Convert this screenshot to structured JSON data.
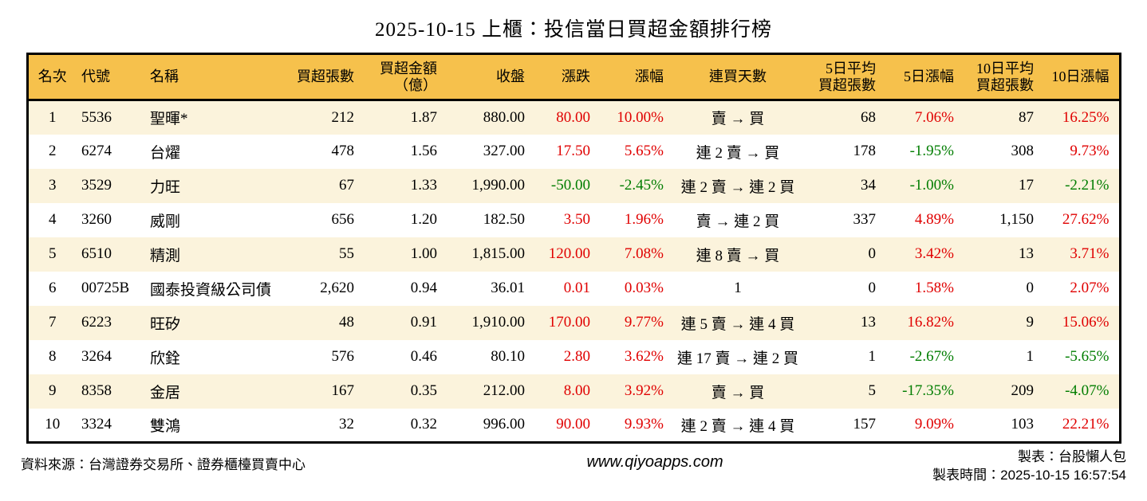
{
  "title": "2025-10-15 上櫃：投信當日買超金額排行榜",
  "colors": {
    "header_bg": "#f6c14c",
    "stripe_bg": "#fbf3dc",
    "positive": "#e00000",
    "negative": "#007d00"
  },
  "table": {
    "header_keys": [
      "rank",
      "code",
      "name",
      "buy-volume",
      "buy-amount",
      "close",
      "change",
      "change-pct",
      "streak",
      "avg5-volume",
      "pct5",
      "avg10-volume",
      "pct10"
    ],
    "headers": [
      "名次",
      "代號",
      "名稱",
      "買超張數",
      "買超金額\n（億）",
      "收盤",
      "漲跌",
      "漲幅",
      "連買天數",
      "5日平均\n買超張數",
      "5日漲幅",
      "10日平均\n買超張數",
      "10日漲幅"
    ],
    "rows": [
      {
        "cells": [
          {
            "t": "1"
          },
          {
            "t": "5536"
          },
          {
            "t": "聖暉*"
          },
          {
            "t": "212"
          },
          {
            "t": "1.87"
          },
          {
            "t": "880.00"
          },
          {
            "t": "80.00",
            "c": "pos"
          },
          {
            "t": "10.00%",
            "c": "pos"
          },
          {
            "t": "賣 → 買"
          },
          {
            "t": "68"
          },
          {
            "t": "7.06%",
            "c": "pos"
          },
          {
            "t": "87"
          },
          {
            "t": "16.25%",
            "c": "pos"
          }
        ]
      },
      {
        "cells": [
          {
            "t": "2"
          },
          {
            "t": "6274"
          },
          {
            "t": "台燿"
          },
          {
            "t": "478"
          },
          {
            "t": "1.56"
          },
          {
            "t": "327.00"
          },
          {
            "t": "17.50",
            "c": "pos"
          },
          {
            "t": "5.65%",
            "c": "pos"
          },
          {
            "t": "連 2 賣 → 買"
          },
          {
            "t": "178"
          },
          {
            "t": "-1.95%",
            "c": "neg"
          },
          {
            "t": "308"
          },
          {
            "t": "9.73%",
            "c": "pos"
          }
        ]
      },
      {
        "cells": [
          {
            "t": "3"
          },
          {
            "t": "3529"
          },
          {
            "t": "力旺"
          },
          {
            "t": "67"
          },
          {
            "t": "1.33"
          },
          {
            "t": "1,990.00"
          },
          {
            "t": "-50.00",
            "c": "neg"
          },
          {
            "t": "-2.45%",
            "c": "neg"
          },
          {
            "t": "連 2 賣 → 連 2 買"
          },
          {
            "t": "34"
          },
          {
            "t": "-1.00%",
            "c": "neg"
          },
          {
            "t": "17"
          },
          {
            "t": "-2.21%",
            "c": "neg"
          }
        ]
      },
      {
        "cells": [
          {
            "t": "4"
          },
          {
            "t": "3260"
          },
          {
            "t": "威剛"
          },
          {
            "t": "656"
          },
          {
            "t": "1.20"
          },
          {
            "t": "182.50"
          },
          {
            "t": "3.50",
            "c": "pos"
          },
          {
            "t": "1.96%",
            "c": "pos"
          },
          {
            "t": "賣 → 連 2 買"
          },
          {
            "t": "337"
          },
          {
            "t": "4.89%",
            "c": "pos"
          },
          {
            "t": "1,150"
          },
          {
            "t": "27.62%",
            "c": "pos"
          }
        ]
      },
      {
        "cells": [
          {
            "t": "5"
          },
          {
            "t": "6510"
          },
          {
            "t": "精測"
          },
          {
            "t": "55"
          },
          {
            "t": "1.00"
          },
          {
            "t": "1,815.00"
          },
          {
            "t": "120.00",
            "c": "pos"
          },
          {
            "t": "7.08%",
            "c": "pos"
          },
          {
            "t": "連 8 賣 → 買"
          },
          {
            "t": "0"
          },
          {
            "t": "3.42%",
            "c": "pos"
          },
          {
            "t": "13"
          },
          {
            "t": "3.71%",
            "c": "pos"
          }
        ]
      },
      {
        "cells": [
          {
            "t": "6"
          },
          {
            "t": "00725B"
          },
          {
            "t": "國泰投資級公司債"
          },
          {
            "t": "2,620"
          },
          {
            "t": "0.94"
          },
          {
            "t": "36.01"
          },
          {
            "t": "0.01",
            "c": "pos"
          },
          {
            "t": "0.03%",
            "c": "pos"
          },
          {
            "t": "1"
          },
          {
            "t": "0"
          },
          {
            "t": "1.58%",
            "c": "pos"
          },
          {
            "t": "0"
          },
          {
            "t": "2.07%",
            "c": "pos"
          }
        ]
      },
      {
        "cells": [
          {
            "t": "7"
          },
          {
            "t": "6223"
          },
          {
            "t": "旺矽"
          },
          {
            "t": "48"
          },
          {
            "t": "0.91"
          },
          {
            "t": "1,910.00"
          },
          {
            "t": "170.00",
            "c": "pos"
          },
          {
            "t": "9.77%",
            "c": "pos"
          },
          {
            "t": "連 5 賣 → 連 4 買"
          },
          {
            "t": "13"
          },
          {
            "t": "16.82%",
            "c": "pos"
          },
          {
            "t": "9"
          },
          {
            "t": "15.06%",
            "c": "pos"
          }
        ]
      },
      {
        "cells": [
          {
            "t": "8"
          },
          {
            "t": "3264"
          },
          {
            "t": "欣銓"
          },
          {
            "t": "576"
          },
          {
            "t": "0.46"
          },
          {
            "t": "80.10"
          },
          {
            "t": "2.80",
            "c": "pos"
          },
          {
            "t": "3.62%",
            "c": "pos"
          },
          {
            "t": "連 17 賣 → 連 2 買"
          },
          {
            "t": "1"
          },
          {
            "t": "-2.67%",
            "c": "neg"
          },
          {
            "t": "1"
          },
          {
            "t": "-5.65%",
            "c": "neg"
          }
        ]
      },
      {
        "cells": [
          {
            "t": "9"
          },
          {
            "t": "8358"
          },
          {
            "t": "金居"
          },
          {
            "t": "167"
          },
          {
            "t": "0.35"
          },
          {
            "t": "212.00"
          },
          {
            "t": "8.00",
            "c": "pos"
          },
          {
            "t": "3.92%",
            "c": "pos"
          },
          {
            "t": "賣 → 買"
          },
          {
            "t": "5"
          },
          {
            "t": "-17.35%",
            "c": "neg"
          },
          {
            "t": "209"
          },
          {
            "t": "-4.07%",
            "c": "neg"
          }
        ]
      },
      {
        "cells": [
          {
            "t": "10"
          },
          {
            "t": "3324"
          },
          {
            "t": "雙鴻"
          },
          {
            "t": "32"
          },
          {
            "t": "0.32"
          },
          {
            "t": "996.00"
          },
          {
            "t": "90.00",
            "c": "pos"
          },
          {
            "t": "9.93%",
            "c": "pos"
          },
          {
            "t": "連 2 賣 → 連 4 買"
          },
          {
            "t": "157"
          },
          {
            "t": "9.09%",
            "c": "pos"
          },
          {
            "t": "103"
          },
          {
            "t": "22.21%",
            "c": "pos"
          }
        ]
      }
    ]
  },
  "footer": {
    "source": "資料來源：台灣證券交易所、證券櫃檯買賣中心",
    "website": "www.qiyoapps.com",
    "credit": "製表：台股懶人包",
    "generated": "製表時間：2025-10-15 16:57:54"
  }
}
